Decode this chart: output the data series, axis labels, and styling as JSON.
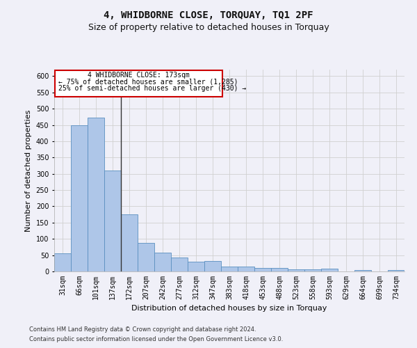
{
  "title": "4, WHIDBORNE CLOSE, TORQUAY, TQ1 2PF",
  "subtitle": "Size of property relative to detached houses in Torquay",
  "xlabel": "Distribution of detached houses by size in Torquay",
  "ylabel": "Number of detached properties",
  "footer_line1": "Contains HM Land Registry data © Crown copyright and database right 2024.",
  "footer_line2": "Contains public sector information licensed under the Open Government Licence v3.0.",
  "categories": [
    "31sqm",
    "66sqm",
    "101sqm",
    "137sqm",
    "172sqm",
    "207sqm",
    "242sqm",
    "277sqm",
    "312sqm",
    "347sqm",
    "383sqm",
    "418sqm",
    "453sqm",
    "488sqm",
    "523sqm",
    "558sqm",
    "593sqm",
    "629sqm",
    "664sqm",
    "699sqm",
    "734sqm"
  ],
  "values": [
    55,
    450,
    472,
    311,
    176,
    88,
    58,
    43,
    30,
    32,
    15,
    15,
    10,
    10,
    6,
    6,
    9,
    0,
    4,
    0,
    4
  ],
  "bar_color": "#aec6e8",
  "bar_edge_color": "#5a8fc0",
  "grid_color": "#d0d0d0",
  "annotation_text_line1": "4 WHIDBORNE CLOSE: 173sqm",
  "annotation_text_line2": "← 75% of detached houses are smaller (1,285)",
  "annotation_text_line3": "25% of semi-detached houses are larger (430) →",
  "annotation_box_edge_color": "#cc0000",
  "vline_x_index": 4,
  "vline_color": "#333333",
  "ylim_max": 620,
  "yticks": [
    0,
    50,
    100,
    150,
    200,
    250,
    300,
    350,
    400,
    450,
    500,
    550,
    600
  ],
  "background_color": "#f0f0f8",
  "title_fontsize": 10,
  "subtitle_fontsize": 9,
  "axis_label_fontsize": 8,
  "tick_fontsize": 7,
  "annotation_fontsize": 7
}
